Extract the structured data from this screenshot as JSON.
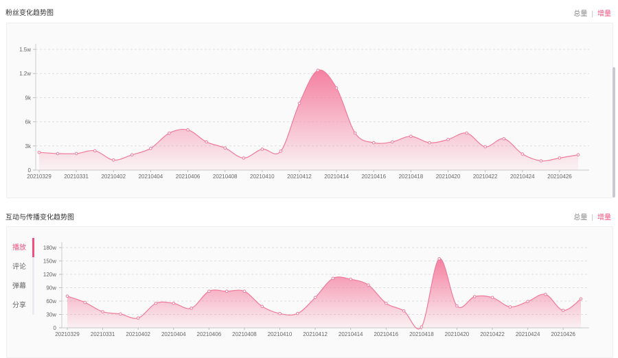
{
  "fans_section": {
    "title": "粉丝变化趋势图",
    "toggle_total": "总量",
    "toggle_increment": "增量"
  },
  "interaction_section": {
    "title": "互动与传播变化趋势图",
    "toggle_total": "总量",
    "toggle_increment": "增量",
    "tabs": [
      "播放",
      "评论",
      "弹幕",
      "分享"
    ]
  },
  "colors": {
    "accent": "#f0507f",
    "line": "#f07a9b",
    "fill_top": "#f47a9c"
  },
  "chart_data": [
    {
      "type": "area",
      "title": "粉丝变化趋势图",
      "y_ticks": [
        "0",
        "3k",
        "6k",
        "9k",
        "1.2w",
        "1.5w"
      ],
      "x_ticks": [
        "20210329",
        "20210331",
        "20210402",
        "20210404",
        "20210406",
        "20210408",
        "20210410",
        "20210412",
        "20210414",
        "20210416",
        "20210418",
        "20210420",
        "20210422",
        "20210424",
        "20210426"
      ],
      "x": [
        "20210329",
        "20210330",
        "20210331",
        "20210401",
        "20210402",
        "20210403",
        "20210404",
        "20210405",
        "20210406",
        "20210407",
        "20210408",
        "20210409",
        "20210410",
        "20210411",
        "20210412",
        "20210413",
        "20210414",
        "20210415",
        "20210416",
        "20210417",
        "20210418",
        "20210419",
        "20210420",
        "20210421",
        "20210422",
        "20210423",
        "20210424",
        "20210425",
        "20210426",
        "20210427"
      ],
      "values": [
        2200,
        2050,
        2050,
        2400,
        1250,
        1900,
        2700,
        4600,
        5000,
        3500,
        2750,
        1500,
        2600,
        2350,
        8300,
        12400,
        10200,
        4600,
        3400,
        3500,
        4200,
        3400,
        3800,
        4600,
        2900,
        3900,
        2000,
        1150,
        1500,
        1900
      ],
      "ylim": [
        0,
        15000
      ],
      "grid": true
    },
    {
      "type": "area",
      "title": "互动与传播变化趋势图",
      "series_selected": "播放",
      "y_ticks": [
        "0",
        "30w",
        "60w",
        "90w",
        "120w",
        "150w",
        "180w"
      ],
      "x_ticks": [
        "20210329",
        "20210331",
        "20210402",
        "20210404",
        "20210406",
        "20210408",
        "20210410",
        "20210412",
        "20210414",
        "20210416",
        "20210418",
        "20210420",
        "20210422",
        "20210424",
        "20210426"
      ],
      "x": [
        "20210329",
        "20210330",
        "20210331",
        "20210401",
        "20210402",
        "20210403",
        "20210404",
        "20210405",
        "20210406",
        "20210407",
        "20210408",
        "20210409",
        "20210410",
        "20210411",
        "20210412",
        "20210413",
        "20210414",
        "20210415",
        "20210416",
        "20210417",
        "20210418",
        "20210419",
        "20210420",
        "20210421",
        "20210422",
        "20210423",
        "20210424",
        "20210425",
        "20210426",
        "20210427"
      ],
      "values": [
        71,
        57,
        36,
        31,
        22,
        55,
        55,
        44,
        82,
        82,
        82,
        48,
        32,
        32,
        68,
        111,
        109,
        96,
        55,
        38,
        2,
        155,
        49,
        70,
        68,
        47,
        59,
        75,
        39,
        65
      ],
      "ylim": [
        0,
        180
      ],
      "grid": true
    }
  ]
}
